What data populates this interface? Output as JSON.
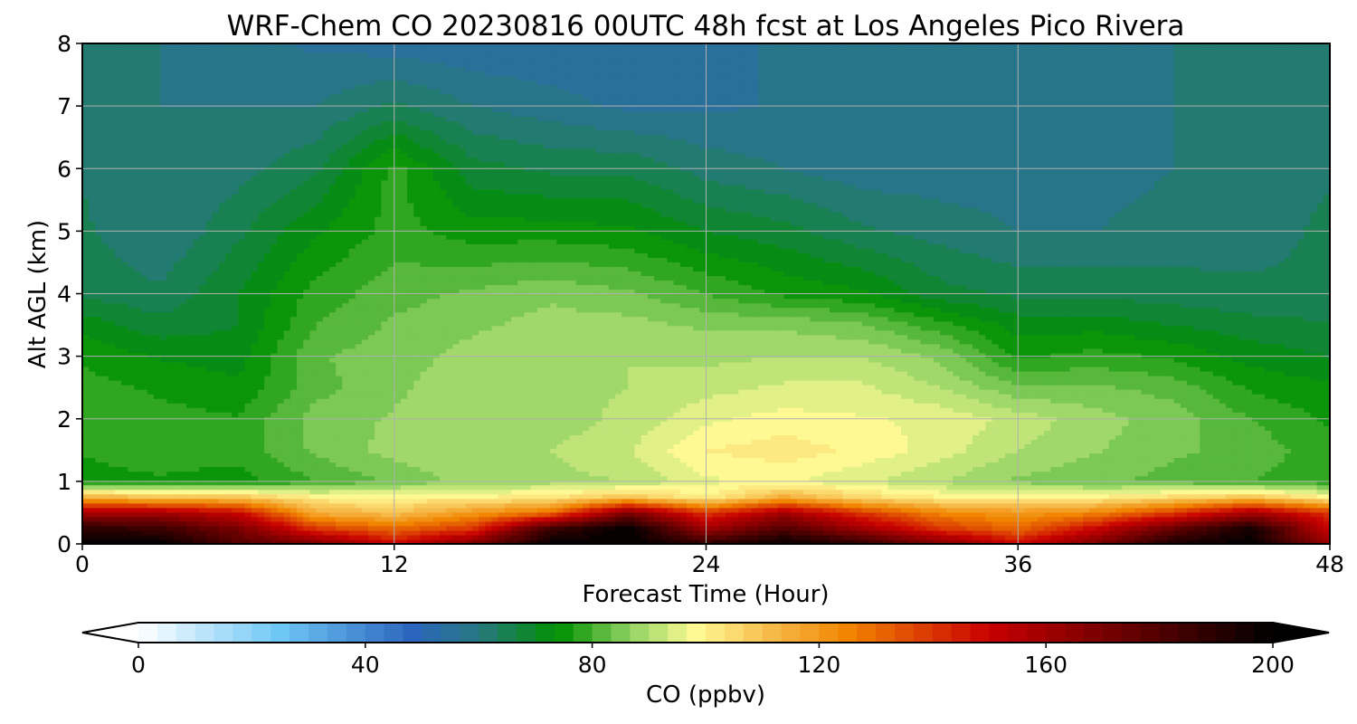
{
  "chart_data": {
    "type": "heatmap",
    "title": "WRF-Chem CO  20230816 00UTC 48h fcst at Los Angeles Pico Rivera",
    "xlabel": "Forecast Time (Hour)",
    "ylabel": "Alt AGL (km)",
    "xlim": [
      0,
      48
    ],
    "ylim": [
      0,
      8
    ],
    "xticks": [
      0,
      12,
      24,
      36,
      48
    ],
    "yticks": [
      0,
      1,
      2,
      3,
      4,
      5,
      6,
      7,
      8
    ],
    "grid": true,
    "x_hours": [
      0,
      3,
      6,
      9,
      12,
      15,
      18,
      21,
      24,
      27,
      30,
      33,
      36,
      39,
      42,
      45,
      48
    ],
    "z_km": [
      0.0,
      0.25,
      0.5,
      0.75,
      1.0,
      1.5,
      2.0,
      2.5,
      3.0,
      3.5,
      4.0,
      5.0,
      6.0,
      7.0,
      8.0
    ],
    "values_ppbv": [
      [
        200,
        200,
        180,
        170,
        150,
        170,
        200,
        200,
        190,
        200,
        190,
        170,
        150,
        170,
        195,
        200,
        160
      ],
      [
        190,
        185,
        170,
        140,
        130,
        140,
        185,
        200,
        160,
        180,
        160,
        140,
        130,
        150,
        175,
        195,
        150
      ],
      [
        160,
        160,
        150,
        115,
        110,
        120,
        130,
        170,
        140,
        160,
        140,
        125,
        120,
        125,
        140,
        160,
        140
      ],
      [
        115,
        110,
        110,
        100,
        100,
        100,
        102,
        110,
        100,
        115,
        105,
        100,
        100,
        100,
        105,
        110,
        100
      ],
      [
        75,
        76,
        75,
        80,
        84,
        88,
        89,
        90,
        96,
        97,
        94,
        90,
        86,
        84,
        82,
        80,
        78
      ],
      [
        77,
        79,
        78,
        84,
        88,
        90,
        90,
        93,
        100,
        102,
        99,
        95,
        90,
        87,
        84,
        82,
        78
      ],
      [
        80,
        78,
        77,
        85,
        87,
        90,
        88,
        91,
        96,
        98,
        97,
        96,
        92,
        88,
        85,
        80,
        76
      ],
      [
        78,
        76,
        74,
        82,
        86,
        89,
        89,
        90,
        92,
        94,
        94,
        90,
        84,
        84,
        82,
        76,
        74
      ],
      [
        76,
        73,
        72,
        83,
        85,
        88,
        89,
        90,
        89,
        90,
        90,
        86,
        76,
        78,
        76,
        72,
        70
      ],
      [
        72,
        68,
        70,
        80,
        84,
        86,
        88,
        88,
        86,
        86,
        84,
        78,
        72,
        72,
        70,
        68,
        67
      ],
      [
        66,
        64,
        70,
        78,
        82,
        84,
        86,
        84,
        80,
        76,
        74,
        68,
        66,
        66,
        65,
        64,
        64
      ],
      [
        64,
        60,
        66,
        73,
        78,
        75,
        75,
        74,
        70,
        68,
        64,
        62,
        60,
        60,
        61,
        62,
        64
      ],
      [
        63,
        60,
        62,
        66,
        78,
        68,
        66,
        66,
        62,
        60,
        58,
        58,
        58,
        59,
        60,
        62,
        63
      ],
      [
        62,
        60,
        60,
        60,
        64,
        60,
        58,
        56,
        56,
        57,
        58,
        58,
        58,
        59,
        60,
        61,
        62
      ],
      [
        62,
        60,
        58,
        56,
        55,
        54,
        54,
        54,
        56,
        57,
        58,
        58,
        58,
        59,
        60,
        61,
        62
      ]
    ],
    "colorbar": {
      "label": "CO  (ppbv)",
      "min": 0,
      "max": 200,
      "ticks": [
        0,
        40,
        80,
        120,
        160,
        200
      ],
      "extend": "both",
      "stops": [
        {
          "v": 0,
          "c": "#ffffff"
        },
        {
          "v": 25,
          "c": "#6ec6f5"
        },
        {
          "v": 48,
          "c": "#2c66be"
        },
        {
          "v": 60,
          "c": "#277780"
        },
        {
          "v": 74,
          "c": "#009000"
        },
        {
          "v": 87,
          "c": "#94d364"
        },
        {
          "v": 98,
          "c": "#fffb96"
        },
        {
          "v": 112,
          "c": "#f6b848"
        },
        {
          "v": 125,
          "c": "#f18500"
        },
        {
          "v": 150,
          "c": "#c80000"
        },
        {
          "v": 175,
          "c": "#650000"
        },
        {
          "v": 200,
          "c": "#000000"
        }
      ]
    }
  }
}
